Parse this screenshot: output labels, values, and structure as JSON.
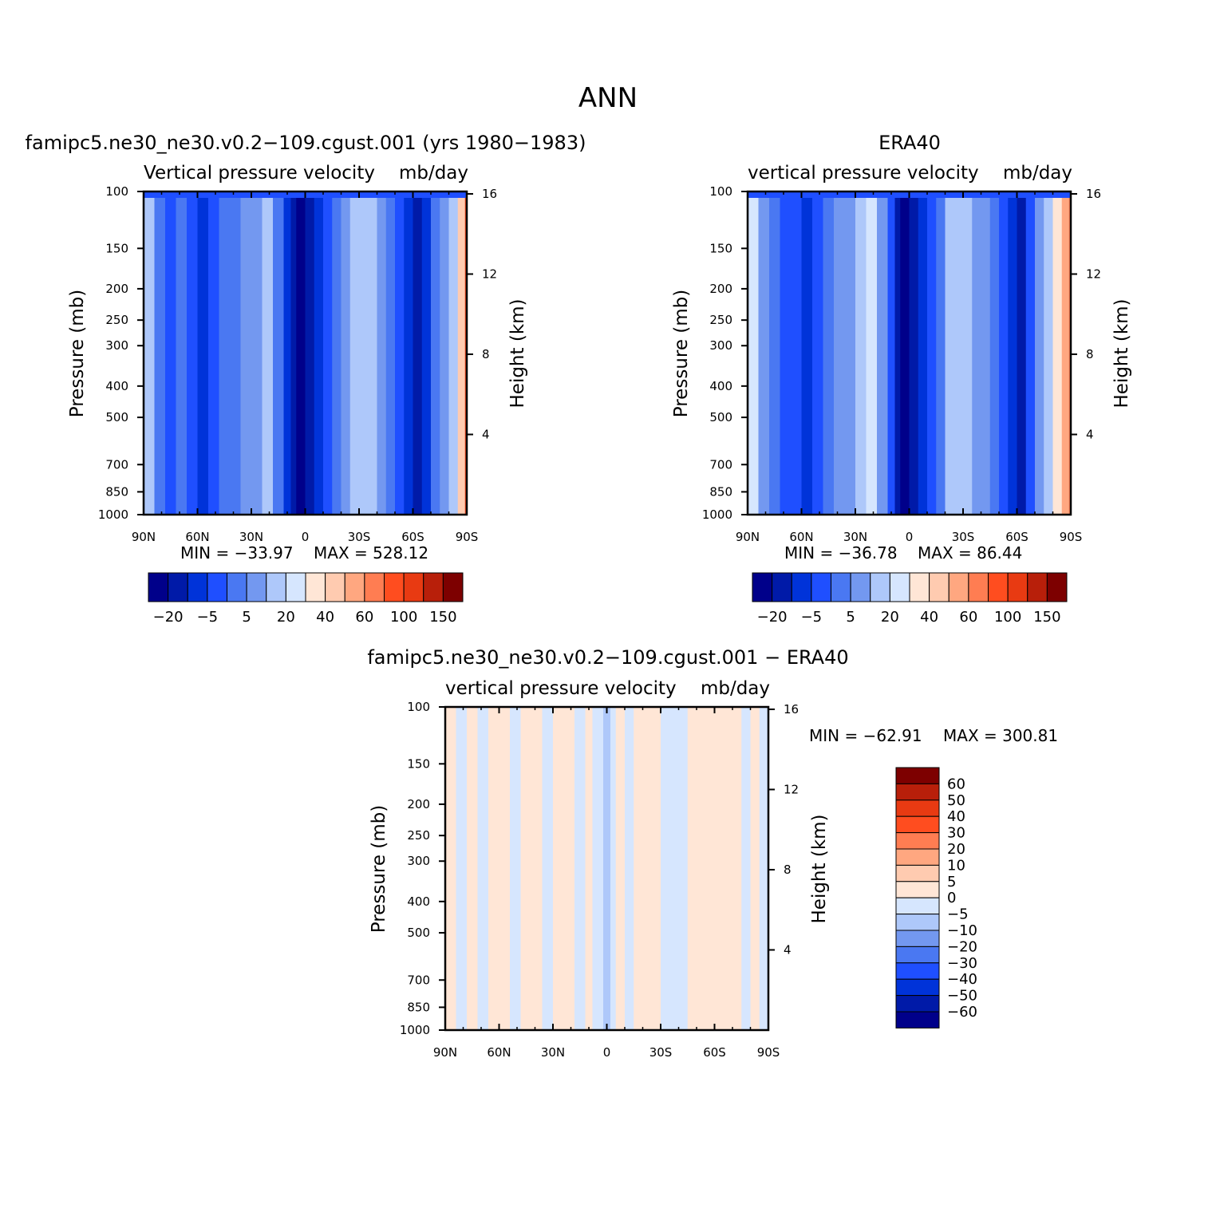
{
  "figure": {
    "title": "ANN"
  },
  "colors": {
    "field_levels": [
      "#00008a",
      "#001aa8",
      "#0033d9",
      "#1f4fff",
      "#4a78f2",
      "#7398f0",
      "#aec8fa",
      "#d6e6fe",
      "#ffe6d6",
      "#ffcbb0",
      "#ffa780",
      "#ff7d52",
      "#ff4d1f",
      "#e83a12",
      "#b81f0a",
      "#7d0000"
    ],
    "diff_levels_top_to_bottom": [
      "#7d0000",
      "#b81f0a",
      "#e83a12",
      "#ff4d1f",
      "#ff7d52",
      "#ffa780",
      "#ffcbb0",
      "#ffe6d6",
      "#d6e6fe",
      "#aec8fa",
      "#7398f0",
      "#4a78f2",
      "#1f4fff",
      "#0033d9",
      "#001aa8",
      "#00008a"
    ]
  },
  "chart_data": [
    {
      "type": "heatmap",
      "title": "famipc5.ne30_ne30.v0.2−109.cgust.001 (yrs 1980−1983)",
      "subtitle_left": "Vertical pressure velocity",
      "subtitle_right": "mb/day",
      "xlabel": "",
      "ylabel": "Pressure (mb)",
      "ylabel_right": "Height (km)",
      "x_ticks": [
        "90N",
        "60N",
        "30N",
        "0",
        "30S",
        "60S",
        "90S"
      ],
      "y_ticks": [
        "100",
        "150",
        "200",
        "250",
        "300",
        "400",
        "500",
        "700",
        "850",
        "1000"
      ],
      "y_right_ticks": [
        "16",
        "12",
        "8",
        "4"
      ],
      "min_label": "MIN = −33.97",
      "max_label": "MAX = 528.12",
      "colorbar_labels": [
        "−20",
        "−5",
        "5",
        "20",
        "40",
        "60",
        "100",
        "150"
      ],
      "bands": [
        {
          "lat": 90,
          "lvl": 6
        },
        {
          "lat": 84,
          "lvl": 4
        },
        {
          "lat": 78,
          "lvl": 3
        },
        {
          "lat": 72,
          "lvl": 4
        },
        {
          "lat": 66,
          "lvl": 3
        },
        {
          "lat": 60,
          "lvl": 2
        },
        {
          "lat": 54,
          "lvl": 3
        },
        {
          "lat": 48,
          "lvl": 4
        },
        {
          "lat": 42,
          "lvl": 4
        },
        {
          "lat": 36,
          "lvl": 5
        },
        {
          "lat": 30,
          "lvl": 5
        },
        {
          "lat": 24,
          "lvl": 6
        },
        {
          "lat": 18,
          "lvl": 4
        },
        {
          "lat": 12,
          "lvl": 2
        },
        {
          "lat": 8,
          "lvl": 1
        },
        {
          "lat": 5,
          "lvl": 0
        },
        {
          "lat": 0,
          "lvl": 1
        },
        {
          "lat": -5,
          "lvl": 2
        },
        {
          "lat": -10,
          "lvl": 3
        },
        {
          "lat": -15,
          "lvl": 4
        },
        {
          "lat": -20,
          "lvl": 5
        },
        {
          "lat": -25,
          "lvl": 6
        },
        {
          "lat": -30,
          "lvl": 6
        },
        {
          "lat": -35,
          "lvl": 6
        },
        {
          "lat": -40,
          "lvl": 5
        },
        {
          "lat": -45,
          "lvl": 4
        },
        {
          "lat": -50,
          "lvl": 3
        },
        {
          "lat": -55,
          "lvl": 2
        },
        {
          "lat": -60,
          "lvl": 1
        },
        {
          "lat": -65,
          "lvl": 2
        },
        {
          "lat": -70,
          "lvl": 4
        },
        {
          "lat": -75,
          "lvl": 5
        },
        {
          "lat": -80,
          "lvl": 6
        },
        {
          "lat": -85,
          "lvl": 9
        },
        {
          "lat": -89,
          "lvl": 13
        }
      ]
    },
    {
      "type": "heatmap",
      "title": "ERA40",
      "subtitle_left": "vertical pressure velocity",
      "subtitle_right": "mb/day",
      "xlabel": "",
      "ylabel": "Pressure (mb)",
      "ylabel_right": "Height (km)",
      "x_ticks": [
        "90N",
        "60N",
        "30N",
        "0",
        "30S",
        "60S",
        "90S"
      ],
      "y_ticks": [
        "100",
        "150",
        "200",
        "250",
        "300",
        "400",
        "500",
        "700",
        "850",
        "1000"
      ],
      "y_right_ticks": [
        "16",
        "12",
        "8",
        "4"
      ],
      "min_label": "MIN = −36.78",
      "max_label": "MAX =  86.44",
      "colorbar_labels": [
        "−20",
        "−5",
        "5",
        "20",
        "40",
        "60",
        "100",
        "150"
      ],
      "bands": [
        {
          "lat": 90,
          "lvl": 7
        },
        {
          "lat": 84,
          "lvl": 5
        },
        {
          "lat": 78,
          "lvl": 4
        },
        {
          "lat": 72,
          "lvl": 3
        },
        {
          "lat": 66,
          "lvl": 3
        },
        {
          "lat": 60,
          "lvl": 2
        },
        {
          "lat": 54,
          "lvl": 3
        },
        {
          "lat": 48,
          "lvl": 4
        },
        {
          "lat": 42,
          "lvl": 5
        },
        {
          "lat": 36,
          "lvl": 5
        },
        {
          "lat": 30,
          "lvl": 6
        },
        {
          "lat": 24,
          "lvl": 7
        },
        {
          "lat": 18,
          "lvl": 5
        },
        {
          "lat": 12,
          "lvl": 3
        },
        {
          "lat": 8,
          "lvl": 1
        },
        {
          "lat": 5,
          "lvl": 0
        },
        {
          "lat": 0,
          "lvl": 1
        },
        {
          "lat": -5,
          "lvl": 2
        },
        {
          "lat": -10,
          "lvl": 3
        },
        {
          "lat": -15,
          "lvl": 4
        },
        {
          "lat": -20,
          "lvl": 6
        },
        {
          "lat": -25,
          "lvl": 6
        },
        {
          "lat": -30,
          "lvl": 6
        },
        {
          "lat": -35,
          "lvl": 5
        },
        {
          "lat": -40,
          "lvl": 5
        },
        {
          "lat": -45,
          "lvl": 4
        },
        {
          "lat": -50,
          "lvl": 3
        },
        {
          "lat": -55,
          "lvl": 2
        },
        {
          "lat": -60,
          "lvl": 1
        },
        {
          "lat": -65,
          "lvl": 3
        },
        {
          "lat": -70,
          "lvl": 5
        },
        {
          "lat": -75,
          "lvl": 6
        },
        {
          "lat": -80,
          "lvl": 8
        },
        {
          "lat": -85,
          "lvl": 10
        },
        {
          "lat": -89,
          "lvl": 11
        }
      ]
    },
    {
      "type": "heatmap",
      "title": "famipc5.ne30_ne30.v0.2−109.cgust.001 − ERA40",
      "subtitle_left": "vertical pressure velocity",
      "subtitle_right": "mb/day",
      "xlabel": "",
      "ylabel": "Pressure (mb)",
      "ylabel_right": "Height (km)",
      "x_ticks": [
        "90N",
        "60N",
        "30N",
        "0",
        "30S",
        "60S",
        "90S"
      ],
      "y_ticks": [
        "100",
        "150",
        "200",
        "250",
        "300",
        "400",
        "500",
        "700",
        "850",
        "1000"
      ],
      "y_right_ticks": [
        "16",
        "12",
        "8",
        "4"
      ],
      "min_label": "MIN = −62.91",
      "max_label": "MAX = 300.81",
      "colorbar_labels": [
        "60",
        "50",
        "40",
        "30",
        "20",
        "10",
        "5",
        "0",
        "−5",
        "−10",
        "−20",
        "−30",
        "−40",
        "−50",
        "−60"
      ],
      "bands": [
        {
          "lat": 90,
          "lvl": 7
        },
        {
          "lat": 84,
          "lvl": 8
        },
        {
          "lat": 78,
          "lvl": 7
        },
        {
          "lat": 72,
          "lvl": 8
        },
        {
          "lat": 66,
          "lvl": 7
        },
        {
          "lat": 60,
          "lvl": 7
        },
        {
          "lat": 54,
          "lvl": 8
        },
        {
          "lat": 48,
          "lvl": 7
        },
        {
          "lat": 42,
          "lvl": 7
        },
        {
          "lat": 36,
          "lvl": 8
        },
        {
          "lat": 30,
          "lvl": 7
        },
        {
          "lat": 24,
          "lvl": 7
        },
        {
          "lat": 18,
          "lvl": 8
        },
        {
          "lat": 12,
          "lvl": 7
        },
        {
          "lat": 8,
          "lvl": 8
        },
        {
          "lat": 5,
          "lvl": 8
        },
        {
          "lat": 2,
          "lvl": 9
        },
        {
          "lat": -2,
          "lvl": 8
        },
        {
          "lat": -5,
          "lvl": 7
        },
        {
          "lat": -10,
          "lvl": 8
        },
        {
          "lat": -15,
          "lvl": 7
        },
        {
          "lat": -20,
          "lvl": 7
        },
        {
          "lat": -25,
          "lvl": 7
        },
        {
          "lat": -30,
          "lvl": 8
        },
        {
          "lat": -35,
          "lvl": 8
        },
        {
          "lat": -40,
          "lvl": 8
        },
        {
          "lat": -45,
          "lvl": 7
        },
        {
          "lat": -50,
          "lvl": 7
        },
        {
          "lat": -55,
          "lvl": 7
        },
        {
          "lat": -60,
          "lvl": 7
        },
        {
          "lat": -65,
          "lvl": 7
        },
        {
          "lat": -70,
          "lvl": 7
        },
        {
          "lat": -75,
          "lvl": 8
        },
        {
          "lat": -80,
          "lvl": 7
        },
        {
          "lat": -85,
          "lvl": 8
        }
      ]
    }
  ]
}
